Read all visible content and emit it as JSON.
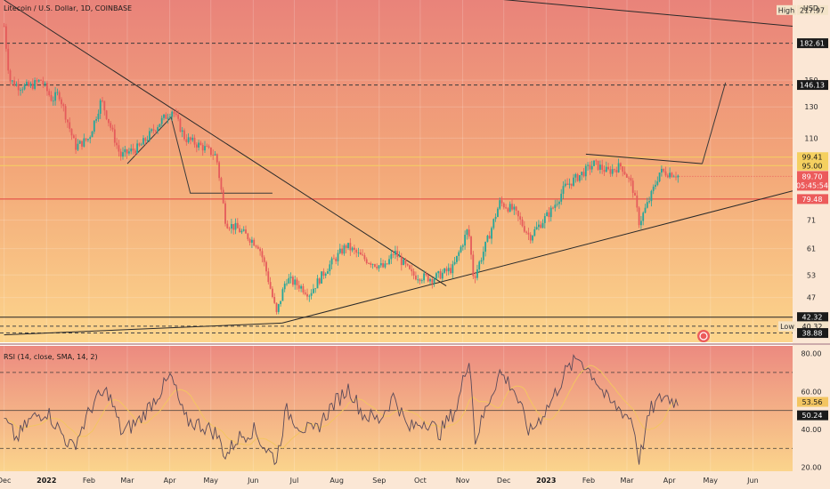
{
  "chart_data": {
    "type": "candlestick",
    "title": "Litecoin / U.S. Dollar, 1D, COINBASE",
    "currency": "USD",
    "y_scale": "log",
    "ylim": [
      37,
      230
    ],
    "price_ticks": [
      47,
      53,
      61,
      71,
      110,
      130,
      150
    ],
    "x_ticks": [
      "Dec",
      "2022",
      "Feb",
      "Mar",
      "Apr",
      "May",
      "Jun",
      "Jul",
      "Aug",
      "Sep",
      "Oct",
      "Nov",
      "Dec",
      "2023",
      "Feb",
      "Mar",
      "Apr",
      "May",
      "Jun"
    ],
    "x_ticks_bold": [
      "2022",
      "2023"
    ],
    "price_path": [
      {
        "d": "2021-12-01",
        "p": 200
      },
      {
        "d": "2021-12-05",
        "p": 150
      },
      {
        "d": "2021-12-12",
        "p": 145
      },
      {
        "d": "2021-12-20",
        "p": 145
      },
      {
        "d": "2021-12-28",
        "p": 150
      },
      {
        "d": "2022-01-05",
        "p": 135
      },
      {
        "d": "2022-01-10",
        "p": 140
      },
      {
        "d": "2022-01-22",
        "p": 105
      },
      {
        "d": "2022-02-01",
        "p": 110
      },
      {
        "d": "2022-02-10",
        "p": 135
      },
      {
        "d": "2022-02-24",
        "p": 100
      },
      {
        "d": "2022-03-10",
        "p": 105
      },
      {
        "d": "2022-03-25",
        "p": 120
      },
      {
        "d": "2022-04-03",
        "p": 128
      },
      {
        "d": "2022-04-12",
        "p": 110
      },
      {
        "d": "2022-04-25",
        "p": 105
      },
      {
        "d": "2022-05-05",
        "p": 100
      },
      {
        "d": "2022-05-12",
        "p": 70
      },
      {
        "d": "2022-05-20",
        "p": 68
      },
      {
        "d": "2022-05-28",
        "p": 65
      },
      {
        "d": "2022-06-05",
        "p": 62
      },
      {
        "d": "2022-06-10",
        "p": 55
      },
      {
        "d": "2022-06-18",
        "p": 43
      },
      {
        "d": "2022-06-25",
        "p": 52
      },
      {
        "d": "2022-07-05",
        "p": 50
      },
      {
        "d": "2022-07-12",
        "p": 48
      },
      {
        "d": "2022-07-25",
        "p": 55
      },
      {
        "d": "2022-08-08",
        "p": 62
      },
      {
        "d": "2022-08-20",
        "p": 58
      },
      {
        "d": "2022-09-05",
        "p": 55
      },
      {
        "d": "2022-09-12",
        "p": 60
      },
      {
        "d": "2022-09-25",
        "p": 53
      },
      {
        "d": "2022-10-10",
        "p": 52
      },
      {
        "d": "2022-10-25",
        "p": 55
      },
      {
        "d": "2022-11-05",
        "p": 68
      },
      {
        "d": "2022-11-09",
        "p": 52
      },
      {
        "d": "2022-11-20",
        "p": 65
      },
      {
        "d": "2022-11-28",
        "p": 78
      },
      {
        "d": "2022-12-08",
        "p": 75
      },
      {
        "d": "2022-12-20",
        "p": 65
      },
      {
        "d": "2023-01-05",
        "p": 75
      },
      {
        "d": "2023-01-15",
        "p": 85
      },
      {
        "d": "2023-01-25",
        "p": 90
      },
      {
        "d": "2023-02-05",
        "p": 96
      },
      {
        "d": "2023-02-15",
        "p": 92
      },
      {
        "d": "2023-02-25",
        "p": 95
      },
      {
        "d": "2023-03-05",
        "p": 85
      },
      {
        "d": "2023-03-10",
        "p": 70
      },
      {
        "d": "2023-03-18",
        "p": 80
      },
      {
        "d": "2023-03-25",
        "p": 92
      },
      {
        "d": "2023-04-05",
        "p": 91
      },
      {
        "d": "2023-04-08",
        "p": 89.7
      }
    ],
    "horizontal_levels": [
      {
        "price": 182.61,
        "label": "182.61",
        "style": "dashed",
        "color": "#3a3a3a",
        "bg": "#1a1a1a",
        "fg": "#ffffff"
      },
      {
        "price": 146.13,
        "label": "146.13",
        "style": "dashed",
        "color": "#3a3a3a",
        "bg": "#1a1a1a",
        "fg": "#ffffff"
      },
      {
        "price": 99.41,
        "label": "99.41",
        "style": "solid",
        "color": "#f5d060",
        "bg": "#f5d060",
        "fg": "#1a1a1a"
      },
      {
        "price": 95.0,
        "label": "95.00",
        "style": "solid",
        "color": "#f5d060",
        "bg": "#f5d060",
        "fg": "#1a1a1a"
      },
      {
        "price": 79.48,
        "label": "79.48",
        "style": "solid",
        "color": "#e04040",
        "bg": "#ec5b5b",
        "fg": "#ffffff"
      },
      {
        "price": 42.32,
        "label": "42.32",
        "style": "solid",
        "color": "#222222",
        "bg": "#1a1a1a",
        "fg": "#ffffff"
      },
      {
        "price": 40.32,
        "label": "40.32",
        "style": "dashed",
        "color": "#444444",
        "bg": "#f3e3c8",
        "fg": "#1a1a1a"
      },
      {
        "price": 38.88,
        "label": "38.88",
        "style": "dashed",
        "color": "#444444",
        "bg": "#1a1a1a",
        "fg": "#ffffff"
      }
    ],
    "high": {
      "label": "High",
      "value": "217.97",
      "price": 217.97
    },
    "low": {
      "label": "Low",
      "value": "40.32",
      "price": 40.32
    },
    "current": {
      "value": "89.70",
      "countdown": "05:45:54",
      "price": 89.7,
      "color": "#ec5b5b"
    },
    "trendlines": [
      {
        "from": {
          "d": "2021-12-01",
          "p": 230
        },
        "to": {
          "d": "2022-10-20",
          "p": 50
        }
      },
      {
        "from": {
          "d": "2022-06-22",
          "p": 41
        },
        "to": {
          "d": "2023-06-30",
          "p": 83
        }
      },
      {
        "from": {
          "d": "2021-12-01",
          "p": 38.5
        },
        "to": {
          "d": "2022-06-22",
          "p": 41
        }
      },
      {
        "from": {
          "d": "2022-09-01",
          "p": 245
        },
        "to": {
          "d": "2023-06-30",
          "p": 200
        }
      },
      {
        "from": {
          "d": "2023-01-30",
          "p": 101
        },
        "to": {
          "d": "2023-04-25",
          "p": 96
        }
      }
    ],
    "projection": [
      {
        "d": "2022-03-01",
        "p": 96
      },
      {
        "d": "2022-04-02",
        "p": 123
      },
      {
        "d": "2022-04-16",
        "p": 82
      },
      {
        "d": "2022-06-15",
        "p": 82
      }
    ],
    "projection2": [
      {
        "d": "2023-04-25",
        "p": 96
      },
      {
        "d": "2023-05-12",
        "p": 148
      }
    ],
    "rsi": {
      "label": "RSI (14, close, SMA, 14, 2)",
      "ylim": [
        18,
        84
      ],
      "ticks": [
        20,
        40,
        60,
        80
      ],
      "levels": [
        70,
        50,
        30
      ],
      "value": "53.56",
      "sma": "50.24",
      "path": [
        {
          "d": "2021-12-01",
          "v": 45
        },
        {
          "d": "2021-12-10",
          "v": 35
        },
        {
          "d": "2021-12-20",
          "v": 45
        },
        {
          "d": "2022-01-01",
          "v": 50
        },
        {
          "d": "2022-01-10",
          "v": 40
        },
        {
          "d": "2022-01-20",
          "v": 30
        },
        {
          "d": "2022-02-05",
          "v": 55
        },
        {
          "d": "2022-02-15",
          "v": 60
        },
        {
          "d": "2022-02-25",
          "v": 38
        },
        {
          "d": "2022-03-10",
          "v": 45
        },
        {
          "d": "2022-03-25",
          "v": 60
        },
        {
          "d": "2022-04-02",
          "v": 68
        },
        {
          "d": "2022-04-12",
          "v": 45
        },
        {
          "d": "2022-04-25",
          "v": 42
        },
        {
          "d": "2022-05-05",
          "v": 38
        },
        {
          "d": "2022-05-12",
          "v": 26
        },
        {
          "d": "2022-05-20",
          "v": 35
        },
        {
          "d": "2022-06-01",
          "v": 40
        },
        {
          "d": "2022-06-10",
          "v": 30
        },
        {
          "d": "2022-06-18",
          "v": 24
        },
        {
          "d": "2022-06-25",
          "v": 50
        },
        {
          "d": "2022-07-05",
          "v": 42
        },
        {
          "d": "2022-07-15",
          "v": 38
        },
        {
          "d": "2022-07-28",
          "v": 52
        },
        {
          "d": "2022-08-10",
          "v": 62
        },
        {
          "d": "2022-08-20",
          "v": 48
        },
        {
          "d": "2022-09-01",
          "v": 45
        },
        {
          "d": "2022-09-12",
          "v": 58
        },
        {
          "d": "2022-09-22",
          "v": 40
        },
        {
          "d": "2022-10-05",
          "v": 45
        },
        {
          "d": "2022-10-15",
          "v": 38
        },
        {
          "d": "2022-10-28",
          "v": 52
        },
        {
          "d": "2022-11-06",
          "v": 80
        },
        {
          "d": "2022-11-10",
          "v": 34
        },
        {
          "d": "2022-11-20",
          "v": 55
        },
        {
          "d": "2022-11-28",
          "v": 70
        },
        {
          "d": "2022-12-08",
          "v": 62
        },
        {
          "d": "2022-12-20",
          "v": 38
        },
        {
          "d": "2023-01-05",
          "v": 55
        },
        {
          "d": "2023-01-15",
          "v": 70
        },
        {
          "d": "2023-01-25",
          "v": 78
        },
        {
          "d": "2023-02-05",
          "v": 68
        },
        {
          "d": "2023-02-15",
          "v": 55
        },
        {
          "d": "2023-02-25",
          "v": 50
        },
        {
          "d": "2023-03-05",
          "v": 45
        },
        {
          "d": "2023-03-10",
          "v": 24
        },
        {
          "d": "2023-03-18",
          "v": 50
        },
        {
          "d": "2023-03-28",
          "v": 58
        },
        {
          "d": "2023-04-08",
          "v": 53.56
        }
      ]
    },
    "colors": {
      "up": "#26a69a",
      "down": "#e55b5b",
      "bg_top": "#e9837a",
      "bg_mid": "#f3a879",
      "bg_bottom": "#fcd58c",
      "rsi_line": "#5a4a5a",
      "rsi_sma": "#f3c561"
    }
  }
}
